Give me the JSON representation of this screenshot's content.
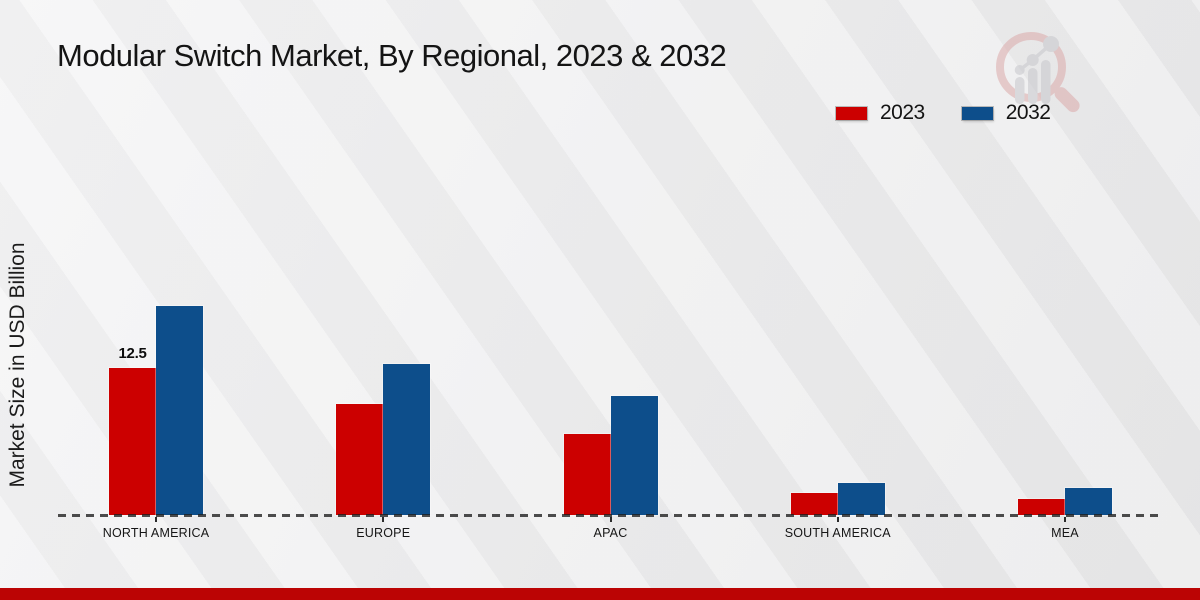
{
  "header": {
    "title": "Modular Switch Market, By Regional, 2023 & 2032"
  },
  "chart_data": {
    "type": "bar",
    "title": "Modular Switch Market, By Regional, 2023 & 2032",
    "xlabel": "",
    "ylabel": "Market Size in USD Billion",
    "units": "USD Billion",
    "categories": [
      "NORTH AMERICA",
      "EUROPE",
      "APAC",
      "SOUTH AMERICA",
      "MEA"
    ],
    "series": [
      {
        "name": "2023",
        "color": "#cc0000",
        "values": [
          12.5,
          9.4,
          6.9,
          1.9,
          1.4
        ]
      },
      {
        "name": "2032",
        "color": "#0d4e8b",
        "values": [
          17.8,
          12.8,
          10.1,
          2.7,
          2.3
        ]
      }
    ],
    "annotations": [
      {
        "series_index": 0,
        "category_index": 0,
        "text": "12.5"
      }
    ],
    "ylim": [
      0,
      20
    ],
    "grid": false,
    "legend_position": "top-right",
    "x_axis_style": "dashed"
  },
  "branding": {
    "logo_icon": "magnifier-growth-chart-icon",
    "footer_bar_color": "#bb0404"
  }
}
